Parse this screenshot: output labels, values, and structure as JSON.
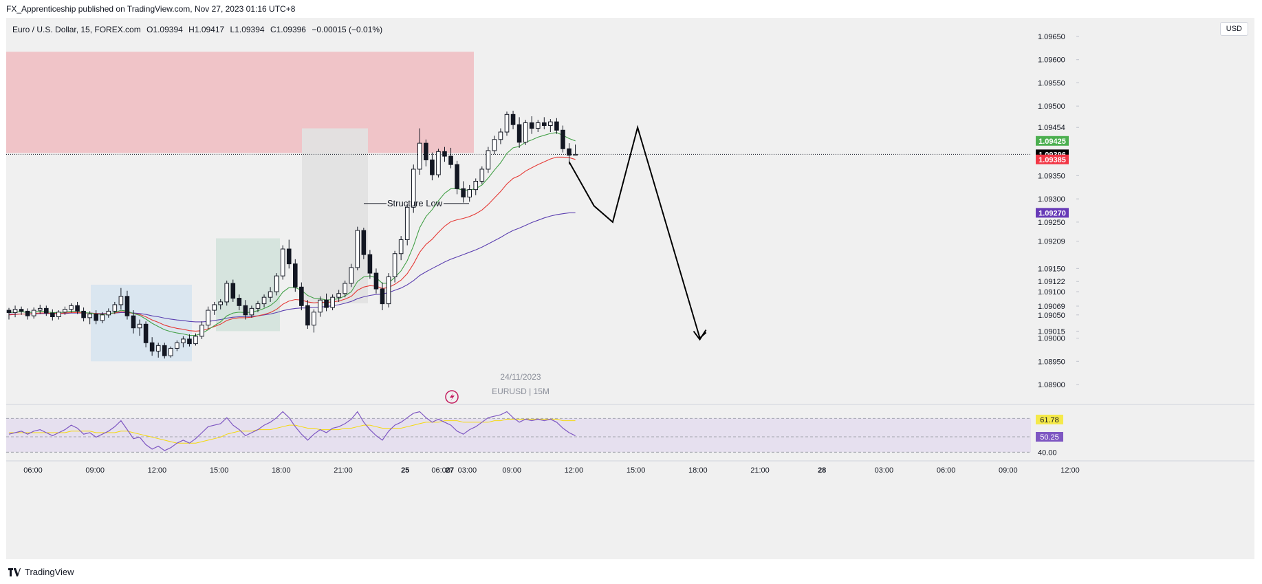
{
  "header": {
    "publisher": "FX_Apprenticeship published on TradingView.com, Nov 27, 2023 01:16 UTC+8"
  },
  "legend": {
    "symbol": "Euro / U.S. Dollar, 15, FOREX.com",
    "open": "O1.09394",
    "high": "H1.09417",
    "low": "L1.09394",
    "close": "C1.09396",
    "change": "−0.00015 (−0.01%)"
  },
  "currency": "USD",
  "watermark": {
    "date": "24/11/2023",
    "pair": "EURUSD | 15M"
  },
  "footer": {
    "brand": "TradingView",
    "logo_icon": "tradingview-logo-icon"
  },
  "chart_data": {
    "type": "candlestick",
    "price_axis": {
      "ticks": [
        "1.09650",
        "1.09600",
        "1.09550",
        "1.09500",
        "1.09454",
        "1.09350",
        "1.09300",
        "1.09250",
        "1.09209",
        "1.09150",
        "1.09122",
        "1.09100",
        "1.09069",
        "1.09050",
        "1.09015",
        "1.09000",
        "1.08950",
        "1.08900"
      ],
      "range": [
        1.0886,
        1.0969
      ]
    },
    "time_axis": {
      "ticks": [
        "06:00",
        "09:00",
        "12:00",
        "15:00",
        "18:00",
        "21:00",
        "25",
        "03:00",
        "06:00",
        "27",
        "09:00",
        "12:00",
        "15:00",
        "18:00",
        "21:00",
        "28",
        "03:00",
        "06:00",
        "09:00",
        "12:00"
      ]
    },
    "price_badges": [
      {
        "value": "1.09425",
        "color": "#4caf50",
        "text_color": "#ffffff"
      },
      {
        "value": "1.09396",
        "color": "#000000",
        "text_color": "#ffffff"
      },
      {
        "value": "1.09385",
        "color": "#f23645",
        "text_color": "#ffffff"
      },
      {
        "value": "1.09270",
        "color": "#673ab7",
        "text_color": "#ffffff"
      }
    ],
    "last_price": 1.09396,
    "supply_zone": {
      "from": 1.09399,
      "to": 1.09617,
      "color": "#f0c4c8"
    },
    "annotation": {
      "text": "Structure Low",
      "price": 1.0929
    },
    "candles": [
      [
        1.0906,
        1.09065,
        1.0904,
        1.09055
      ],
      [
        1.09055,
        1.0907,
        1.09045,
        1.09062
      ],
      [
        1.09062,
        1.09068,
        1.0905,
        1.09058
      ],
      [
        1.09058,
        1.09064,
        1.0904,
        1.09048
      ],
      [
        1.09048,
        1.09066,
        1.09042,
        1.0906
      ],
      [
        1.0906,
        1.09072,
        1.09052,
        1.09064
      ],
      [
        1.09064,
        1.0907,
        1.09048,
        1.09054
      ],
      [
        1.09054,
        1.09062,
        1.09038,
        1.09046
      ],
      [
        1.09046,
        1.0906,
        1.0904,
        1.09056
      ],
      [
        1.09056,
        1.09068,
        1.0905,
        1.09062
      ],
      [
        1.09062,
        1.09075,
        1.09055,
        1.0907
      ],
      [
        1.0907,
        1.09078,
        1.09052,
        1.09058
      ],
      [
        1.09058,
        1.09066,
        1.09036,
        1.09044
      ],
      [
        1.09044,
        1.09058,
        1.0903,
        1.09052
      ],
      [
        1.09052,
        1.0906,
        1.0903,
        1.09038
      ],
      [
        1.09038,
        1.09056,
        1.09032,
        1.0905
      ],
      [
        1.0905,
        1.09064,
        1.09044,
        1.09058
      ],
      [
        1.09058,
        1.09078,
        1.09052,
        1.09072
      ],
      [
        1.09072,
        1.09108,
        1.09062,
        1.0909
      ],
      [
        1.0909,
        1.09102,
        1.0904,
        1.09048
      ],
      [
        1.09048,
        1.0906,
        1.0901,
        1.09022
      ],
      [
        1.09022,
        1.0904,
        1.09005,
        1.0903
      ],
      [
        1.0903,
        1.09036,
        1.0898,
        1.0899
      ],
      [
        1.0899,
        1.09002,
        1.08962,
        1.08972
      ],
      [
        1.08972,
        1.0899,
        1.08958,
        1.08984
      ],
      [
        1.08984,
        1.0899,
        1.08956,
        1.08962
      ],
      [
        1.08962,
        1.08982,
        1.08958,
        1.08978
      ],
      [
        1.08978,
        1.08995,
        1.08972,
        1.0899
      ],
      [
        1.0899,
        1.09004,
        1.0898,
        1.08998
      ],
      [
        1.08998,
        1.09008,
        1.08982,
        1.08988
      ],
      [
        1.08988,
        1.0901,
        1.08984,
        1.09004
      ],
      [
        1.09004,
        1.09036,
        1.08998,
        1.09028
      ],
      [
        1.09028,
        1.09068,
        1.0902,
        1.0906
      ],
      [
        1.0906,
        1.09078,
        1.0905,
        1.09072
      ],
      [
        1.09072,
        1.09084,
        1.09062,
        1.09078
      ],
      [
        1.09078,
        1.09124,
        1.0907,
        1.09118
      ],
      [
        1.09118,
        1.09126,
        1.09078,
        1.09086
      ],
      [
        1.09086,
        1.09094,
        1.0906,
        1.0907
      ],
      [
        1.0907,
        1.09082,
        1.0904,
        1.0905
      ],
      [
        1.0905,
        1.0907,
        1.09044,
        1.09064
      ],
      [
        1.09064,
        1.0908,
        1.09056,
        1.09074
      ],
      [
        1.09074,
        1.09094,
        1.09066,
        1.09088
      ],
      [
        1.09088,
        1.0911,
        1.09078,
        1.091
      ],
      [
        1.091,
        1.0914,
        1.09092,
        1.09134
      ],
      [
        1.09134,
        1.092,
        1.09126,
        1.09192
      ],
      [
        1.09192,
        1.09212,
        1.0915,
        1.0916
      ],
      [
        1.0916,
        1.0917,
        1.091,
        1.0911
      ],
      [
        1.0911,
        1.0912,
        1.0906,
        1.0907
      ],
      [
        1.0907,
        1.09082,
        1.0902,
        1.09028
      ],
      [
        1.09028,
        1.09062,
        1.09012,
        1.09056
      ],
      [
        1.09056,
        1.0909,
        1.09046,
        1.09082
      ],
      [
        1.09082,
        1.09096,
        1.09058,
        1.09066
      ],
      [
        1.09066,
        1.09094,
        1.0906,
        1.09088
      ],
      [
        1.09088,
        1.09104,
        1.09078,
        1.09096
      ],
      [
        1.09096,
        1.09124,
        1.09088,
        1.09118
      ],
      [
        1.09118,
        1.0916,
        1.0911,
        1.09152
      ],
      [
        1.09152,
        1.0924,
        1.09146,
        1.09232
      ],
      [
        1.09232,
        1.09238,
        1.0917,
        1.0918
      ],
      [
        1.0918,
        1.0919,
        1.09128,
        1.0914
      ],
      [
        1.0914,
        1.0915,
        1.09096,
        1.09106
      ],
      [
        1.09106,
        1.0912,
        1.0906,
        1.09074
      ],
      [
        1.09074,
        1.0914,
        1.09066,
        1.09132
      ],
      [
        1.09132,
        1.09188,
        1.0912,
        1.09182
      ],
      [
        1.09182,
        1.0922,
        1.09168,
        1.09212
      ],
      [
        1.09212,
        1.0929,
        1.092,
        1.09282
      ],
      [
        1.09282,
        1.09374,
        1.0927,
        1.09364
      ],
      [
        1.09364,
        1.09452,
        1.09352,
        1.0942
      ],
      [
        1.0942,
        1.09428,
        1.0937,
        1.09384
      ],
      [
        1.09384,
        1.094,
        1.0934,
        1.09352
      ],
      [
        1.09352,
        1.09408,
        1.09346,
        1.09402
      ],
      [
        1.09402,
        1.09412,
        1.0938,
        1.09392
      ],
      [
        1.09392,
        1.0941,
        1.09366,
        1.09374
      ],
      [
        1.09374,
        1.09382,
        1.0931,
        1.09322
      ],
      [
        1.09322,
        1.09338,
        1.09292,
        1.09304
      ],
      [
        1.09304,
        1.0933,
        1.09294,
        1.0932
      ],
      [
        1.0932,
        1.09344,
        1.09308,
        1.09338
      ],
      [
        1.09338,
        1.0937,
        1.09332,
        1.09364
      ],
      [
        1.09364,
        1.09412,
        1.09356,
        1.09404
      ],
      [
        1.09404,
        1.09436,
        1.09396,
        1.09428
      ],
      [
        1.09428,
        1.09452,
        1.09418,
        1.09444
      ],
      [
        1.09444,
        1.09488,
        1.09436,
        1.09482
      ],
      [
        1.09482,
        1.0949,
        1.0945,
        1.0946
      ],
      [
        1.0946,
        1.09476,
        1.0941,
        1.09422
      ],
      [
        1.09422,
        1.0947,
        1.09416,
        1.09464
      ],
      [
        1.09464,
        1.09478,
        1.0944,
        1.09452
      ],
      [
        1.09452,
        1.0947,
        1.09444,
        1.09464
      ],
      [
        1.09464,
        1.09476,
        1.0945,
        1.09458
      ],
      [
        1.09458,
        1.09472,
        1.09444,
        1.09466
      ],
      [
        1.09466,
        1.09474,
        1.0944,
        1.09448
      ],
      [
        1.09448,
        1.09458,
        1.094,
        1.09408
      ],
      [
        1.09408,
        1.0942,
        1.09374,
        1.09394
      ],
      [
        1.09394,
        1.09417,
        1.09394,
        1.09396
      ]
    ],
    "ema_fast": [
      1.09055,
      1.09056,
      1.09057,
      1.09055,
      1.09056,
      1.09058,
      1.09057,
      1.09055,
      1.09055,
      1.09056,
      1.09058,
      1.09058,
      1.09055,
      1.09054,
      1.09052,
      1.09051,
      1.09052,
      1.09055,
      1.0906,
      1.09058,
      1.09053,
      1.09049,
      1.09041,
      1.09032,
      1.09025,
      1.09018,
      1.09014,
      1.09011,
      1.09009,
      1.09006,
      1.09006,
      1.0901,
      1.09018,
      1.09027,
      1.09035,
      1.09048,
      1.09054,
      1.09056,
      1.09055,
      1.09056,
      1.09059,
      1.09064,
      1.0907,
      1.09081,
      1.09099,
      1.09109,
      1.09109,
      1.09103,
      1.09092,
      1.09086,
      1.09085,
      1.09082,
      1.09083,
      1.09085,
      1.09091,
      1.091,
      1.09122,
      1.09132,
      1.09134,
      1.0913,
      1.09118,
      1.09119,
      1.09131,
      1.09145,
      1.09167,
      1.09199,
      1.09238,
      1.09262,
      1.09277,
      1.09296,
      1.09312,
      1.09322,
      1.09322,
      1.09319,
      1.09319,
      1.09322,
      1.0933,
      1.09345,
      1.09362,
      1.09378,
      1.09398,
      1.0941,
      1.09413,
      1.09422,
      1.09427,
      1.09433,
      1.09437,
      1.09441,
      1.09443,
      1.09437,
      1.0943,
      1.09425
    ],
    "ema_mid": [
      1.0905,
      1.09051,
      1.09052,
      1.09052,
      1.09053,
      1.09054,
      1.09054,
      1.09053,
      1.09053,
      1.09054,
      1.09055,
      1.09055,
      1.09054,
      1.09054,
      1.09053,
      1.09052,
      1.09053,
      1.09054,
      1.09057,
      1.09056,
      1.09053,
      1.09051,
      1.09046,
      1.09039,
      1.09034,
      1.09028,
      1.09024,
      1.09021,
      1.09019,
      1.09016,
      1.09015,
      1.09016,
      1.0902,
      1.09025,
      1.0903,
      1.09038,
      1.09042,
      1.09044,
      1.09044,
      1.09045,
      1.09048,
      1.09051,
      1.09055,
      1.09062,
      1.09073,
      1.0908,
      1.09083,
      1.09082,
      1.09078,
      1.09076,
      1.09077,
      1.09077,
      1.09078,
      1.0908,
      1.09084,
      1.0909,
      1.09103,
      1.0911,
      1.09113,
      1.09112,
      1.09107,
      1.09109,
      1.09116,
      1.09125,
      1.09139,
      1.0916,
      1.09185,
      1.09202,
      1.09213,
      1.09228,
      1.09241,
      1.09251,
      1.09255,
      1.09258,
      1.09262,
      1.09268,
      1.09276,
      1.09288,
      1.09302,
      1.09316,
      1.09332,
      1.09344,
      1.0935,
      1.0936,
      1.09367,
      1.09374,
      1.0938,
      1.09386,
      1.0939,
      1.0939,
      1.09389,
      1.09385
    ],
    "ema_slow": [
      1.09052,
      1.09052,
      1.09052,
      1.09052,
      1.09052,
      1.09053,
      1.09053,
      1.09053,
      1.09053,
      1.09053,
      1.09054,
      1.09054,
      1.09054,
      1.09054,
      1.09053,
      1.09053,
      1.09053,
      1.09054,
      1.09055,
      1.09055,
      1.09054,
      1.09053,
      1.09051,
      1.09048,
      1.09046,
      1.09043,
      1.09041,
      1.09039,
      1.09038,
      1.09036,
      1.09035,
      1.09035,
      1.09036,
      1.09038,
      1.0904,
      1.09043,
      1.09045,
      1.09046,
      1.09046,
      1.09047,
      1.09048,
      1.0905,
      1.09052,
      1.09055,
      1.09059,
      1.09062,
      1.09064,
      1.09065,
      1.09065,
      1.09066,
      1.09067,
      1.09068,
      1.0907,
      1.09072,
      1.09075,
      1.09079,
      1.09085,
      1.09089,
      1.09092,
      1.09094,
      1.09095,
      1.09098,
      1.09103,
      1.09108,
      1.09115,
      1.09124,
      1.09135,
      1.09143,
      1.0915,
      1.09157,
      1.09164,
      1.0917,
      1.09175,
      1.0918,
      1.09185,
      1.0919,
      1.09196,
      1.09203,
      1.0921,
      1.09217,
      1.09225,
      1.09232,
      1.09237,
      1.09243,
      1.09249,
      1.09254,
      1.09259,
      1.09263,
      1.09266,
      1.09268,
      1.0927,
      1.0927
    ],
    "projection": [
      [
        90,
        1.0938
      ],
      [
        94,
        1.09285
      ],
      [
        97,
        1.0925
      ],
      [
        101,
        1.09454
      ],
      [
        111,
        1.09
      ],
      [
        112,
        1.09012
      ]
    ],
    "rsi": {
      "levels": [
        "62.54",
        "50.25",
        "40.00"
      ],
      "badges": [
        {
          "value": "61.78",
          "color": "#f5e94a",
          "text_color": "#131722"
        },
        {
          "value": "50.25",
          "color": "#7e57c2",
          "text_color": "#ffffff"
        }
      ],
      "values": [
        52,
        53,
        54,
        52,
        54,
        55,
        53,
        51,
        53,
        55,
        58,
        56,
        52,
        53,
        50,
        52,
        54,
        57,
        61,
        55,
        49,
        50,
        45,
        42,
        44,
        41,
        43,
        46,
        48,
        46,
        49,
        53,
        57,
        58,
        59,
        63,
        58,
        55,
        51,
        53,
        55,
        58,
        60,
        63,
        67,
        63,
        57,
        52,
        48,
        52,
        55,
        53,
        56,
        57,
        59,
        62,
        67,
        60,
        55,
        51,
        48,
        54,
        58,
        60,
        63,
        66,
        67,
        63,
        60,
        62,
        60,
        58,
        54,
        52,
        55,
        57,
        60,
        63,
        64,
        65,
        67,
        63,
        60,
        62,
        61,
        62,
        61,
        62,
        60,
        56,
        53,
        51
      ],
      "ma": [
        53,
        53,
        53,
        53,
        53,
        53,
        53,
        53,
        53,
        53,
        54,
        54,
        54,
        54,
        53,
        53,
        53,
        53,
        54,
        54,
        53,
        52,
        51,
        50,
        49,
        48,
        47,
        46,
        46,
        46,
        46,
        47,
        48,
        49,
        50,
        52,
        53,
        54,
        54,
        54,
        55,
        55,
        55,
        56,
        57,
        58,
        58,
        57,
        56,
        56,
        55,
        55,
        55,
        55,
        56,
        56,
        57,
        58,
        58,
        57,
        56,
        56,
        56,
        56,
        57,
        58,
        59,
        60,
        60,
        60,
        61,
        61,
        61,
        60,
        60,
        60,
        60,
        60,
        61,
        61,
        62,
        62,
        62,
        62,
        62,
        62,
        62,
        62,
        62,
        61,
        61,
        61
      ]
    }
  }
}
